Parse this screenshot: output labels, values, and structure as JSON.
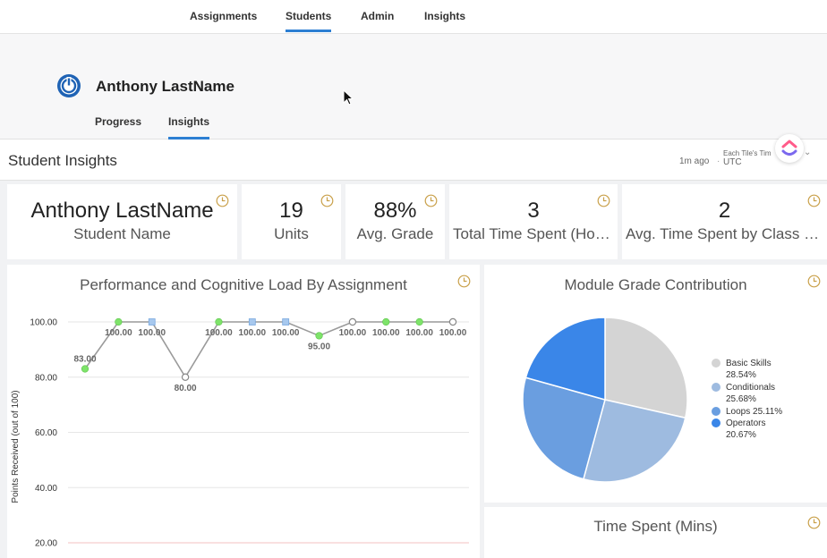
{
  "nav": {
    "tabs": [
      {
        "label": "Assignments"
      },
      {
        "label": "Students"
      },
      {
        "label": "Admin"
      },
      {
        "label": "Insights"
      }
    ],
    "active_tab": "Students"
  },
  "student": {
    "name": "Anthony LastName",
    "subtabs": [
      {
        "label": "Progress"
      },
      {
        "label": "Insights"
      }
    ],
    "active_subtab": "Insights"
  },
  "insights": {
    "title": "Student Insights",
    "updated": "1m ago",
    "timezone_label": "Each Tile's Tim",
    "timezone_value": "UTC"
  },
  "kpis": [
    {
      "value": "Anthony LastName",
      "label": "Student Name"
    },
    {
      "value": "19",
      "label": "Units"
    },
    {
      "value": "88%",
      "label": "Avg. Grade"
    },
    {
      "value": "3",
      "label": "Total Time Spent (Hours)"
    },
    {
      "value": "2",
      "label": "Avg. Time Spent by Class (Mins)"
    }
  ],
  "colors": {
    "accent": "#2d7fd3",
    "clock": "#c9a04a",
    "point_green": "#7ee36a",
    "point_blue": "#a7c8ee",
    "line": "#9a9a9a"
  },
  "chart_data": [
    {
      "type": "line",
      "title": "Performance and Cognitive Load By Assignment",
      "ylabel": "Points Received (out of 100)",
      "xlabel": "",
      "ylim": [
        20,
        100
      ],
      "yticks": [
        "100.00",
        "80.00",
        "60.00",
        "40.00",
        "20.00"
      ],
      "grid": true,
      "points": [
        {
          "y": 83,
          "label": "83.00",
          "marker": "green"
        },
        {
          "y": 100,
          "label": "100.00",
          "marker": "green"
        },
        {
          "y": 100,
          "label": "100.00",
          "marker": "blue"
        },
        {
          "y": 80,
          "label": "80.00",
          "marker": "hollow"
        },
        {
          "y": 100,
          "label": "100.00",
          "marker": "green"
        },
        {
          "y": 100,
          "label": "100.00",
          "marker": "blue"
        },
        {
          "y": 100,
          "label": "100.00",
          "marker": "blue"
        },
        {
          "y": 95,
          "label": "95.00",
          "marker": "green"
        },
        {
          "y": 100,
          "label": "100.00",
          "marker": "hollow"
        },
        {
          "y": 100,
          "label": "100.00",
          "marker": "green"
        },
        {
          "y": 100,
          "label": "100.00",
          "marker": "green"
        },
        {
          "y": 100,
          "label": "100.00",
          "marker": "hollow"
        }
      ]
    },
    {
      "type": "pie",
      "title": "Module Grade Contribution",
      "legend_position": "right",
      "slices": [
        {
          "name": "Basic Skills",
          "value": 28.54,
          "label": "28.54%",
          "color": "#d4d4d4"
        },
        {
          "name": "Conditionals",
          "value": 25.68,
          "label": "25.68%",
          "color": "#9ebbe0"
        },
        {
          "name": "Loops",
          "value": 25.11,
          "label": "25.11%",
          "color": "#6a9ee0"
        },
        {
          "name": "Operators",
          "value": 20.67,
          "label": "20.67%",
          "color": "#3a86e8"
        }
      ]
    }
  ],
  "time_spent": {
    "title": "Time Spent (Mins)"
  }
}
